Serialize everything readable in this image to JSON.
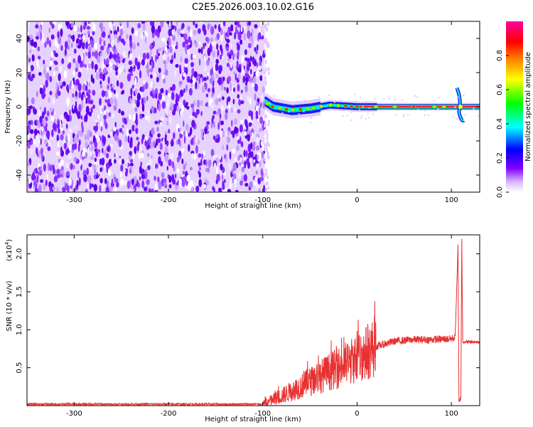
{
  "title": "C2E5.2026.003.10.02.G16",
  "chart_data": [
    {
      "type": "heatmap",
      "title": "C2E5.2026.003.10.02.G16",
      "xlabel": "Height of straight line (km)",
      "ylabel": "Frequency (Hz)",
      "xlim": [
        -350,
        130
      ],
      "ylim": [
        -50,
        50
      ],
      "xticks": [
        -300,
        -200,
        -100,
        0,
        100
      ],
      "xtick_labels": [
        "-300",
        "-200",
        "-100",
        "0",
        "100"
      ],
      "yticks": [
        -40,
        -20,
        0,
        20,
        40
      ],
      "ytick_labels": [
        "-40",
        "-20",
        "0",
        "20",
        "40"
      ],
      "noise_region_x": [
        -350,
        -98
      ],
      "signal_track": {
        "x_start": -98,
        "x_end": 130,
        "freq_center": [
          [
            -98,
            3
          ],
          [
            -90,
            0
          ],
          [
            -70,
            -2
          ],
          [
            -50,
            -1
          ],
          [
            -30,
            1
          ],
          [
            0,
            0
          ],
          [
            100,
            0
          ],
          [
            130,
            0
          ]
        ],
        "spike_x": 108
      },
      "colorbar": {
        "label": "Normalized spectral amplitude",
        "range": [
          0,
          1
        ],
        "ticks": [
          0.0,
          0.2,
          0.4,
          0.6,
          0.8
        ],
        "tick_labels": [
          "0.0",
          "0.2",
          "0.4",
          "0.6",
          "0.8"
        ],
        "colors": [
          "#f0e0ff",
          "#8000ff",
          "#0000ff",
          "#00ffff",
          "#00ff00",
          "#ffff00",
          "#ff8000",
          "#ff0000",
          "#ff00a0"
        ]
      }
    },
    {
      "type": "line",
      "xlabel": "Height of straight line (km)",
      "ylabel": "SNR (10 * v/v)",
      "scale_label": "(x10",
      "scale_exp": "4",
      "scale_close": ")",
      "xlim": [
        -350,
        130
      ],
      "ylim": [
        0,
        2.25
      ],
      "xticks": [
        -300,
        -200,
        -100,
        0,
        100
      ],
      "xtick_labels": [
        "-300",
        "-200",
        "-100",
        "0",
        "100"
      ],
      "yticks": [
        0.5,
        1.0,
        1.5,
        2.0
      ],
      "ytick_labels": [
        "0.5",
        "1.0",
        "1.5",
        "2.0"
      ],
      "color": "#e83030",
      "series": [
        {
          "name": "SNR",
          "keypoints": [
            [
              -350,
              0.02
            ],
            [
              -100,
              0.02
            ],
            [
              -85,
              0.1
            ],
            [
              -60,
              0.25
            ],
            [
              -40,
              0.38
            ],
            [
              -20,
              0.5
            ],
            [
              0,
              0.62
            ],
            [
              20,
              0.78
            ],
            [
              40,
              0.85
            ],
            [
              60,
              0.87
            ],
            [
              80,
              0.87
            ],
            [
              100,
              0.88
            ],
            [
              104,
              0.9
            ],
            [
              107,
              2.1
            ],
            [
              108,
              0.05
            ],
            [
              110,
              0.1
            ],
            [
              111,
              2.2
            ],
            [
              112,
              0.84
            ],
            [
              130,
              0.84
            ]
          ]
        }
      ]
    }
  ]
}
